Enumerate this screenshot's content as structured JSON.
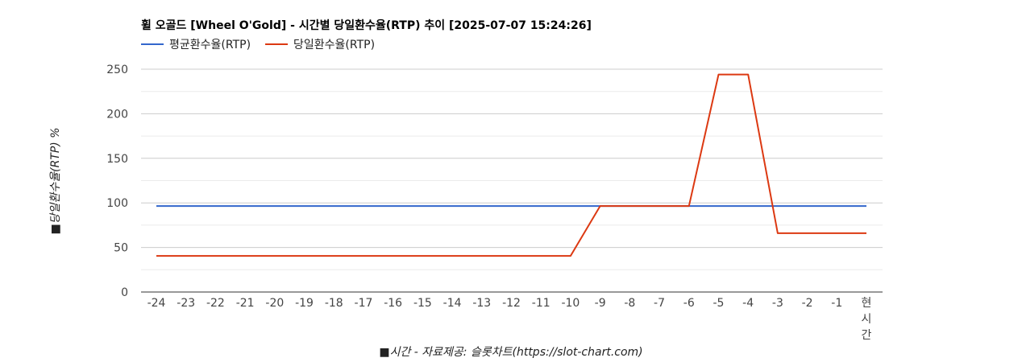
{
  "chart_data": {
    "type": "line",
    "title": "휠 오골드 [Wheel O'Gold] - 시간별 당일환수율(RTP) 추이 [2025-07-07 15:24:26]",
    "xlabel": "■시간 - 자료제공: 슬롯차트(https://slot-chart.com)",
    "ylabel": "■당일환수율(RTP) %",
    "ylim": [
      0,
      250
    ],
    "yticks": [
      "0",
      "50",
      "100",
      "150",
      "200",
      "250"
    ],
    "categories": [
      "-24",
      "-23",
      "-22",
      "-21",
      "-20",
      "-19",
      "-18",
      "-17",
      "-16",
      "-15",
      "-14",
      "-13",
      "-12",
      "-11",
      "-10",
      "-9",
      "-8",
      "-7",
      "-6",
      "-5",
      "-4",
      "-3",
      "-2",
      "-1",
      "현\n시\n간"
    ],
    "legend_position": "top-left",
    "grid": true,
    "series": [
      {
        "name": "평균환수율(RTP)",
        "color": "#3366cc",
        "values": [
          96.5,
          96.5,
          96.5,
          96.5,
          96.5,
          96.5,
          96.5,
          96.5,
          96.5,
          96.5,
          96.5,
          96.5,
          96.5,
          96.5,
          96.5,
          96.5,
          96.5,
          96.5,
          96.5,
          96.5,
          96.5,
          96.5,
          96.5,
          96.5,
          96.5
        ]
      },
      {
        "name": "당일환수율(RTP)",
        "color": "#dc3912",
        "values": [
          40.5,
          40.5,
          40.5,
          40.5,
          40.5,
          40.5,
          40.5,
          40.5,
          40.5,
          40.5,
          40.5,
          40.5,
          40.5,
          40.5,
          40.5,
          96.5,
          96.5,
          96.5,
          96.5,
          244,
          244,
          66,
          66,
          66,
          66
        ]
      }
    ]
  }
}
